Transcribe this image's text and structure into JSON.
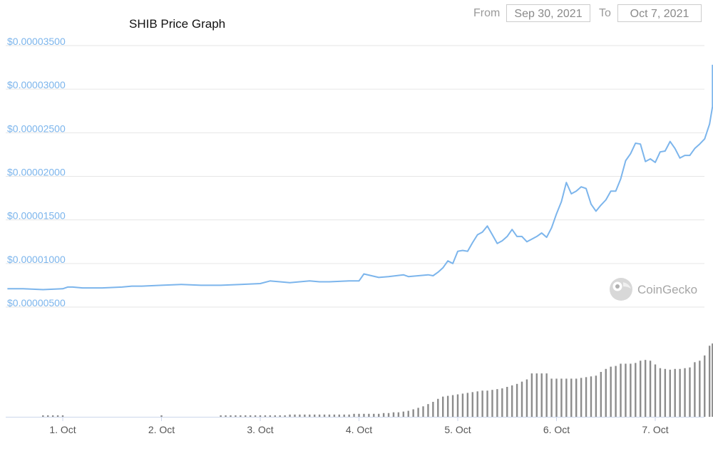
{
  "title": "SHIB Price Graph",
  "range": {
    "from_label": "From",
    "from_value": "Sep 30, 2021",
    "to_label": "To",
    "to_value": "Oct 7, 2021"
  },
  "watermark": {
    "text": "CoinGecko",
    "icon": "gecko-logo-icon"
  },
  "colors": {
    "price_line": "#7cb5ec",
    "volume_bars": "#8c8c8c",
    "ytick_text": "#7cb5ec",
    "grid": "#e6e6e6"
  },
  "chart_data": {
    "type": "line",
    "title": "SHIB Price Graph",
    "x_tick_labels": [
      "1. Oct",
      "2. Oct",
      "3. Oct",
      "4. Oct",
      "5. Oct",
      "6. Oct",
      "7. Oct"
    ],
    "y_tick_labels": [
      "$0.00000500",
      "$0.00001000",
      "$0.00001500",
      "$0.00002000",
      "$0.00002500",
      "$0.00003000",
      "$0.00003500"
    ],
    "y_ticks": [
      5e-06,
      1e-05,
      1.5e-05,
      2e-05,
      2.5e-05,
      3e-05,
      3.5e-05
    ],
    "ylim": [
      5e-06,
      3.5e-05
    ],
    "xlim": [
      -0.56,
      6.58
    ],
    "grid": true,
    "series": [
      {
        "kind": "price",
        "x": [
          -0.56,
          -0.4,
          -0.2,
          0.0,
          0.05,
          0.1,
          0.2,
          0.4,
          0.6,
          0.7,
          0.8,
          1.0,
          1.2,
          1.4,
          1.6,
          1.8,
          2.0,
          2.1,
          2.2,
          2.3,
          2.5,
          2.6,
          2.7,
          2.9,
          3.0,
          3.05,
          3.2,
          3.3,
          3.45,
          3.5,
          3.6,
          3.7,
          3.75,
          3.8,
          3.85,
          3.9,
          3.95,
          4.0,
          4.05,
          4.1,
          4.15,
          4.2,
          4.25,
          4.3,
          4.35,
          4.4,
          4.45,
          4.5,
          4.55,
          4.6,
          4.65,
          4.7,
          4.75,
          4.8,
          4.85,
          4.9,
          4.95,
          5.0,
          5.05,
          5.1,
          5.15,
          5.2,
          5.25,
          5.3,
          5.35,
          5.4,
          5.45,
          5.5,
          5.55,
          5.6,
          5.65,
          5.7,
          5.75,
          5.8,
          5.85,
          5.9,
          5.95,
          6.0,
          6.05,
          6.1,
          6.15,
          6.2,
          6.25,
          6.3,
          6.35,
          6.4,
          6.45,
          6.5,
          6.55,
          6.58
        ],
        "y": [
          7.1e-06,
          7.1e-06,
          7e-06,
          7.1e-06,
          7.3e-06,
          7.3e-06,
          7.2e-06,
          7.2e-06,
          7.3e-06,
          7.4e-06,
          7.4e-06,
          7.5e-06,
          7.6e-06,
          7.5e-06,
          7.5e-06,
          7.6e-06,
          7.7e-06,
          8e-06,
          7.9e-06,
          7.8e-06,
          8e-06,
          7.9e-06,
          7.9e-06,
          8e-06,
          8e-06,
          8.8e-06,
          8.4e-06,
          8.5e-06,
          8.7e-06,
          8.5e-06,
          8.6e-06,
          8.7e-06,
          8.6e-06,
          9e-06,
          9.5e-06,
          1.03e-05,
          1e-05,
          1.14e-05,
          1.15e-05,
          1.14e-05,
          1.24e-05,
          1.33e-05,
          1.36e-05,
          1.43e-05,
          1.33e-05,
          1.23e-05,
          1.26e-05,
          1.31e-05,
          1.39e-05,
          1.31e-05,
          1.31e-05,
          1.25e-05,
          1.28e-05,
          1.31e-05,
          1.35e-05,
          1.3e-05,
          1.41e-05,
          1.57e-05,
          1.71e-05,
          1.93e-05,
          1.8e-05,
          1.83e-05,
          1.88e-05,
          1.86e-05,
          1.68e-05,
          1.6e-05,
          1.67e-05,
          1.73e-05,
          1.83e-05,
          1.83e-05,
          1.97e-05,
          2.18e-05,
          2.26e-05,
          2.38e-05,
          2.37e-05,
          2.17e-05,
          2.2e-05,
          2.16e-05,
          2.28e-05,
          2.29e-05,
          2.4e-05,
          2.32e-05,
          2.21e-05,
          2.24e-05,
          2.24e-05,
          2.32e-05,
          2.37e-05,
          2.43e-05,
          2.6e-05,
          2.8e-05
        ],
        "x_tail": [
          6.58
        ],
        "y_tail": [
          3.28e-05
        ]
      },
      {
        "kind": "volume",
        "x": [
          -0.2,
          -0.15,
          -0.1,
          -0.05,
          0.0,
          1.0,
          1.6,
          1.65,
          1.7,
          1.75,
          1.8,
          1.85,
          1.9,
          1.95,
          2.0,
          2.05,
          2.1,
          2.15,
          2.2,
          2.25,
          2.3,
          2.35,
          2.4,
          2.45,
          2.5,
          2.55,
          2.6,
          2.65,
          2.7,
          2.75,
          2.8,
          2.85,
          2.9,
          2.95,
          3.0,
          3.05,
          3.1,
          3.15,
          3.2,
          3.25,
          3.3,
          3.35,
          3.4,
          3.45,
          3.5,
          3.55,
          3.6,
          3.65,
          3.7,
          3.75,
          3.8,
          3.85,
          3.9,
          3.95,
          4.0,
          4.05,
          4.1,
          4.15,
          4.2,
          4.25,
          4.3,
          4.35,
          4.4,
          4.45,
          4.5,
          4.55,
          4.6,
          4.65,
          4.7,
          4.75,
          4.8,
          4.85,
          4.9,
          4.95,
          5.0,
          5.05,
          5.1,
          5.15,
          5.2,
          5.25,
          5.3,
          5.35,
          5.4,
          5.45,
          5.5,
          5.55,
          5.6,
          5.65,
          5.7,
          5.75,
          5.8,
          5.85,
          5.9,
          5.95,
          6.0,
          6.05,
          6.1,
          6.15,
          6.2,
          6.25,
          6.3,
          6.35,
          6.4,
          6.45,
          6.5,
          6.55,
          6.58
        ],
        "values": [
          2,
          2,
          2,
          2,
          2,
          2,
          2,
          2,
          2,
          2,
          2,
          2,
          2,
          2,
          2,
          2,
          2,
          2,
          2,
          2,
          3,
          3,
          3,
          3,
          3,
          3,
          3,
          3,
          3,
          3,
          3,
          3,
          3,
          4,
          4,
          4,
          4,
          4,
          4,
          5,
          5,
          6,
          6,
          7,
          8,
          10,
          12,
          14,
          17,
          20,
          24,
          27,
          28,
          29,
          30,
          31,
          32,
          33,
          34,
          35,
          35,
          36,
          37,
          38,
          40,
          42,
          44,
          47,
          50,
          58,
          58,
          58,
          58,
          51,
          51,
          51,
          51,
          51,
          51,
          52,
          53,
          54,
          55,
          60,
          64,
          67,
          68,
          71,
          71,
          71,
          72,
          75,
          76,
          75,
          70,
          65,
          64,
          63,
          64,
          64,
          65,
          66,
          73,
          75,
          82,
          95,
          98
        ]
      }
    ],
    "volume_ylim": [
      0,
      100
    ]
  }
}
